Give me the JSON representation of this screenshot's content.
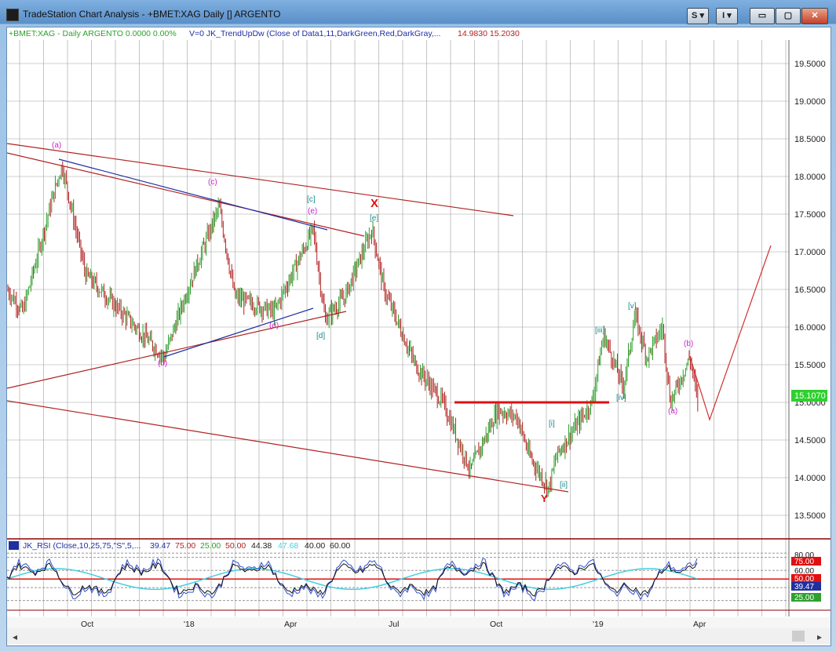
{
  "window": {
    "title": "TradeStation Chart Analysis - +BMET:XAG Daily [] ARGENTO",
    "buttons": {
      "s": "S",
      "i": "I",
      "minimize": "▭",
      "maximize": "▢",
      "close": "✕"
    }
  },
  "header": {
    "symbol_label": "+BMET:XAG - Daily  ARGENTO  0.0000  0.00%",
    "indicator_label": "V=0  JK_TrendUpDw (Close of Data1,11,DarkGreen,Red,DarkGray,...",
    "indicator_values": "14.9830  15.2030"
  },
  "colors": {
    "up": "#2ea02e",
    "down": "#b22222",
    "trend_red": "#b22222",
    "trend_blue": "#1f2fa0",
    "rsi_blue": "#2f4fd0",
    "rsi_cyan": "#40d0e0",
    "magenta": "#d020d0",
    "teal": "#1a8a8a",
    "grid": "#a0a0a0",
    "price_tag": "#2fd02f"
  },
  "price_axis": [
    "19.5000",
    "19.0000",
    "18.5000",
    "18.0000",
    "17.5000",
    "17.0000",
    "16.5000",
    "16.0000",
    "15.5000",
    "15.0000",
    "14.5000",
    "14.0000",
    "13.5000"
  ],
  "last_price": "15.1070",
  "time_axis": [
    "Oct",
    "'18",
    "Apr",
    "Jul",
    "Oct",
    "'19",
    "Apr"
  ],
  "wave_labels": [
    {
      "text": "(a)",
      "kind": "magenta"
    },
    {
      "text": "(b)",
      "kind": "magenta"
    },
    {
      "text": "(c)",
      "kind": "magenta"
    },
    {
      "text": "(d)",
      "kind": "magenta"
    },
    {
      "text": "(e)",
      "kind": "magenta"
    },
    {
      "text": "[c]",
      "kind": "teal"
    },
    {
      "text": "[d]",
      "kind": "teal"
    },
    {
      "text": "[e]",
      "kind": "teal"
    },
    {
      "text": "X",
      "kind": "red"
    },
    {
      "text": "Y",
      "kind": "red"
    },
    {
      "text": "[i]",
      "kind": "teal"
    },
    {
      "text": "[ii]",
      "kind": "teal"
    },
    {
      "text": "[iii]",
      "kind": "teal"
    },
    {
      "text": "[iv]",
      "kind": "teal"
    },
    {
      "text": "[v]",
      "kind": "teal"
    },
    {
      "text": "(a)",
      "kind": "magenta"
    },
    {
      "text": "(b)",
      "kind": "magenta"
    }
  ],
  "rsi": {
    "label": "JK_RSI (Close,10,25,75,\"S\",5,...",
    "values": [
      "39.47",
      "75.00",
      "25.00",
      "50.00",
      "44.38",
      "47.68",
      "40.00",
      "60.00"
    ],
    "axis": [
      "80.00",
      "75.00",
      "60.00",
      "50.00",
      "40.00",
      "39.47",
      "25.00"
    ]
  }
}
